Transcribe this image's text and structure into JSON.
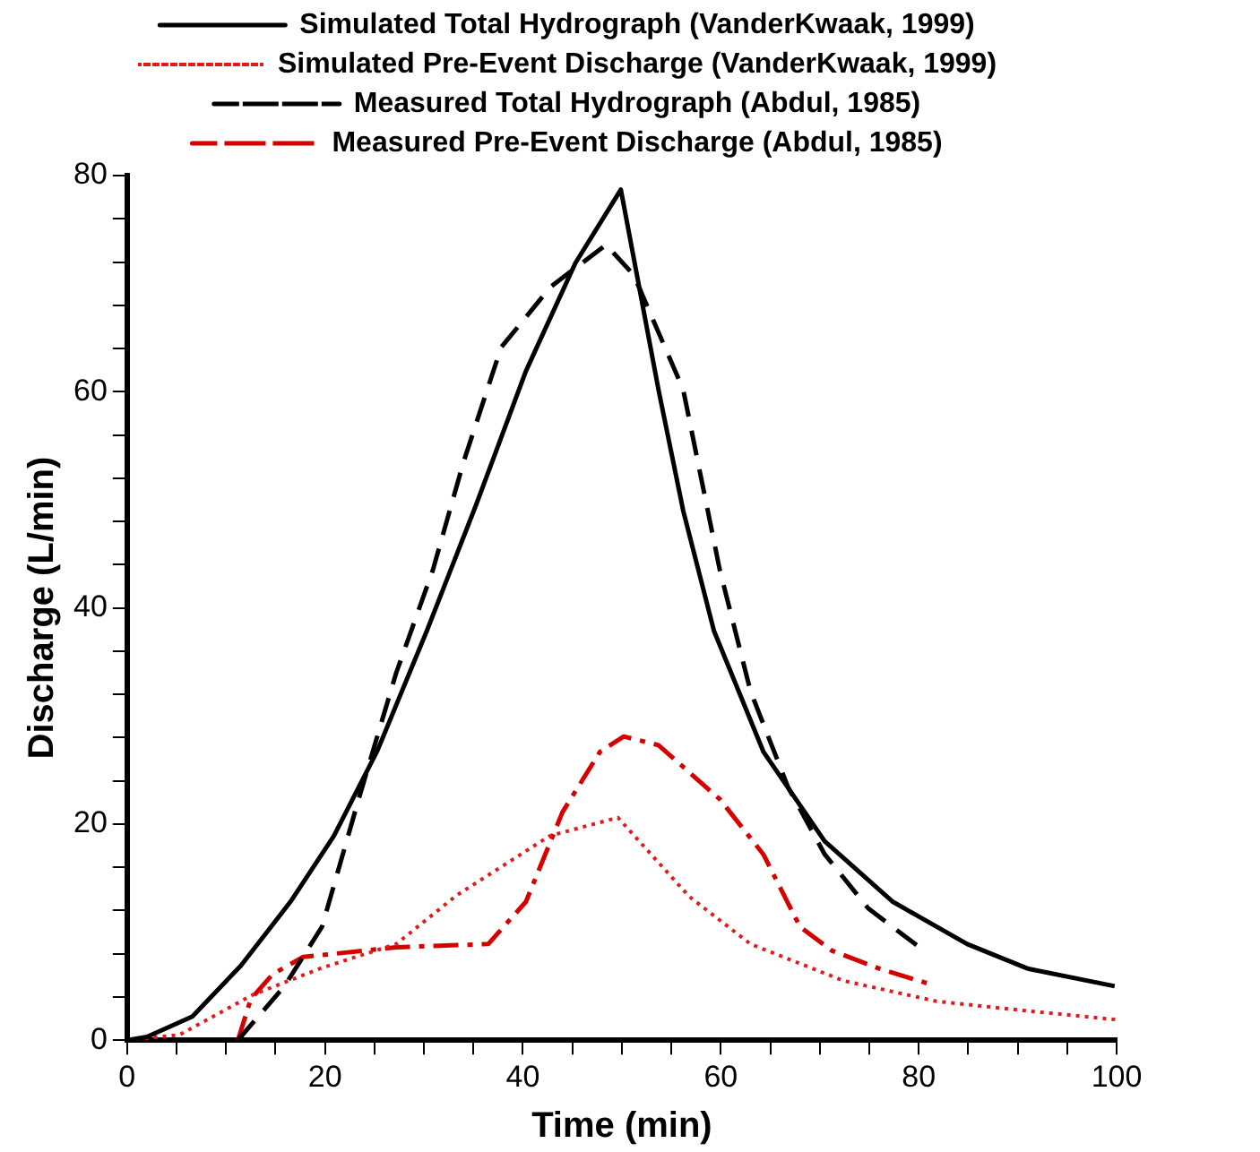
{
  "chart_data": {
    "type": "line",
    "xlabel": "Time (min)",
    "ylabel": "Discharge (L/min)",
    "xlim": [
      0,
      100
    ],
    "xticks": [
      0,
      {
        "value": 5,
        "label": null
      },
      {
        "value": 10,
        "label": null
      },
      {
        "value": 15,
        "label": null
      },
      20,
      {
        "value": 25,
        "label": null
      },
      {
        "value": 30,
        "label": null
      },
      {
        "value": 35,
        "label": null
      },
      40,
      {
        "value": 45,
        "label": null
      },
      {
        "value": 50,
        "label": null
      },
      {
        "value": 55,
        "label": null
      },
      60,
      {
        "value": 65,
        "label": null
      },
      {
        "value": 70,
        "label": null
      },
      {
        "value": 75,
        "label": null
      },
      80,
      {
        "value": 85,
        "label": null
      },
      {
        "value": 90,
        "label": null
      },
      {
        "value": 95,
        "label": null
      },
      100
    ],
    "ylim": [
      0,
      80
    ],
    "yticks": [
      0,
      {
        "value": 4,
        "label": null
      },
      {
        "value": 8,
        "label": null
      },
      {
        "value": 12,
        "label": null
      },
      {
        "value": 16,
        "label": null
      },
      20,
      {
        "value": 24,
        "label": null
      },
      {
        "value": 28,
        "label": null
      },
      {
        "value": 32,
        "label": null
      },
      {
        "value": 36,
        "label": null
      },
      40,
      {
        "value": 44,
        "label": null
      },
      {
        "value": 48,
        "label": null
      },
      {
        "value": 52,
        "label": null
      },
      {
        "value": 56,
        "label": null
      },
      60,
      {
        "value": 64,
        "label": null
      },
      {
        "value": 68,
        "label": null
      },
      {
        "value": 72,
        "label": null
      },
      {
        "value": 76,
        "label": null
      },
      80
    ],
    "legend": "top",
    "marker": "none",
    "series": [
      {
        "name": "Simulated Total Hydrograph (VanderKwaak, 1999)",
        "color": "#000000",
        "line_style": "solid",
        "x": [
          0,
          2,
          6.6,
          11.5,
          16.5,
          20.9,
          25.3,
          30.3,
          35.3,
          40.3,
          45.3,
          49.9,
          53.7,
          56.2,
          59.3,
          64.3,
          70.5,
          77.4,
          84.9,
          91.1,
          99.8
        ],
        "values": [
          0,
          0.3,
          2.2,
          6.9,
          12.8,
          18.9,
          26.8,
          37.9,
          49.6,
          61.9,
          71.9,
          78.7,
          60.2,
          49,
          37.9,
          26.7,
          18.4,
          12.8,
          8.9,
          6.6,
          5
        ]
      },
      {
        "name": "Simulated Pre-Event Discharge (VanderKwaak, 1999)",
        "color": "#e31a1c",
        "line_style": "dotted",
        "x": [
          0,
          5.3,
          12.7,
          19.7,
          27.2,
          33.3,
          42.7,
          49.6,
          56.8,
          63,
          72.4,
          81.8,
          91.1,
          100
        ],
        "values": [
          0,
          0.5,
          4.2,
          6.7,
          8.9,
          13.4,
          18.9,
          20.6,
          13.3,
          8.9,
          5.5,
          3.6,
          2.7,
          1.9
        ]
      },
      {
        "name": "Measured Total Hydrograph (Abdul, 1985)",
        "color": "#000000",
        "line_style": "dashed",
        "x": [
          11.2,
          15.9,
          19.7,
          23.4,
          27.2,
          30.9,
          34,
          37.8,
          42.8,
          48.4,
          51.2,
          56.2,
          59.9,
          63,
          66.8,
          70.5,
          74.9,
          80.5
        ],
        "values": [
          0,
          5,
          10.5,
          22.3,
          34,
          43.5,
          53.5,
          64.1,
          69.7,
          73.6,
          70.8,
          60.2,
          43.5,
          32.3,
          23.4,
          17.2,
          12.2,
          8.3
        ]
      },
      {
        "name": "Measured Pre-Event Discharge (Abdul, 1985)",
        "color": "#d40000",
        "line_style": "dashdot",
        "x": [
          11.2,
          12.5,
          14.7,
          17.8,
          27.2,
          36.5,
          40.3,
          44,
          47.8,
          50.2,
          53.7,
          59.9,
          64.3,
          68,
          71.2,
          76.1,
          81.1
        ],
        "values": [
          0,
          3.8,
          6.1,
          7.7,
          8.6,
          8.9,
          12.8,
          21.1,
          26.7,
          28.1,
          27.3,
          22.3,
          17.2,
          10.5,
          8.3,
          6.6,
          5.2
        ]
      }
    ]
  }
}
